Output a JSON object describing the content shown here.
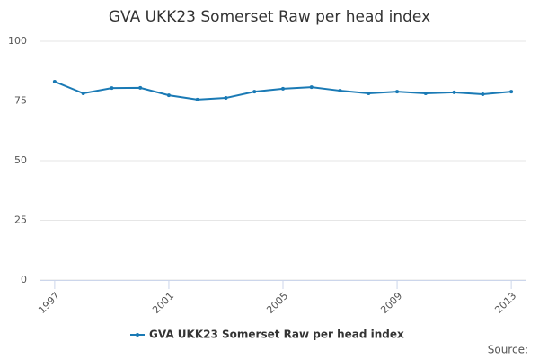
{
  "chart_data": {
    "type": "line",
    "title": "GVA UKK23 Somerset Raw per head index",
    "x": [
      1997,
      1998,
      1999,
      2000,
      2001,
      2002,
      2003,
      2004,
      2005,
      2006,
      2007,
      2008,
      2009,
      2010,
      2011,
      2012,
      2013
    ],
    "series": [
      {
        "name": "GVA UKK23 Somerset Raw per head index",
        "color": "#1a7ab5",
        "values": [
          83.1,
          78.2,
          80.4,
          80.5,
          77.4,
          75.6,
          76.3,
          78.9,
          80.1,
          80.8,
          79.3,
          78.2,
          78.9,
          78.2,
          78.6,
          77.8,
          78.9
        ]
      }
    ],
    "xlim": [
      1996.5,
      2013.5
    ],
    "xticks": [
      1997,
      2001,
      2005,
      2009,
      2013
    ],
    "ylim": [
      0,
      100
    ],
    "yticks": [
      0,
      25,
      50,
      75,
      100
    ],
    "grid": true,
    "legend": "bottom",
    "source": "Source:"
  }
}
